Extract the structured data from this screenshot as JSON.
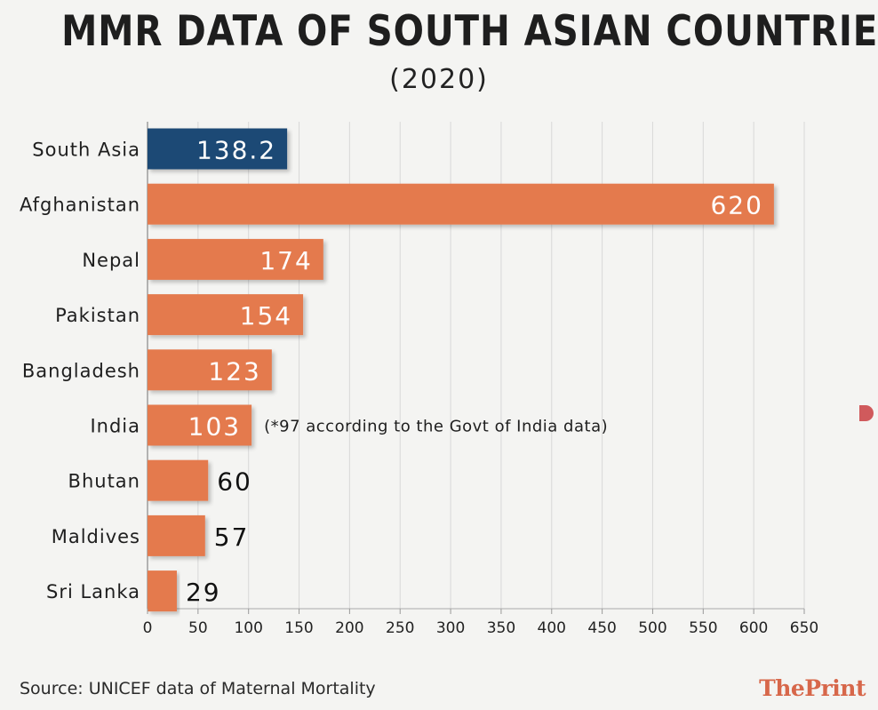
{
  "chart_data": {
    "type": "bar",
    "orientation": "horizontal",
    "title": "MMR DATA OF SOUTH ASIAN COUNTRIES",
    "subtitle": "(2020)",
    "categories": [
      "South Asia",
      "Afghanistan",
      "Nepal",
      "Pakistan",
      "Bangladesh",
      "India",
      "Bhutan",
      "Maldives",
      "Sri Lanka"
    ],
    "values": [
      138.2,
      620,
      174,
      154,
      123,
      103,
      60,
      57,
      29
    ],
    "value_labels": [
      "138.2",
      "620",
      "174",
      "154",
      "123",
      "103",
      "60",
      "57",
      "29"
    ],
    "highlight_category": "South Asia",
    "annotation": {
      "category": "India",
      "text": "(*97 according to the Govt of India data)"
    },
    "xlim": [
      0,
      650
    ],
    "xticks": [
      0,
      50,
      100,
      150,
      200,
      250,
      300,
      350,
      400,
      450,
      500,
      550,
      600,
      650
    ],
    "grid": true,
    "colors": {
      "highlight": "#1f4a74",
      "bar": "#e47a4e",
      "grid": "#d8d8d8"
    }
  },
  "source": "Source: UNICEF data of Maternal Mortality",
  "brand": "ThePrint"
}
